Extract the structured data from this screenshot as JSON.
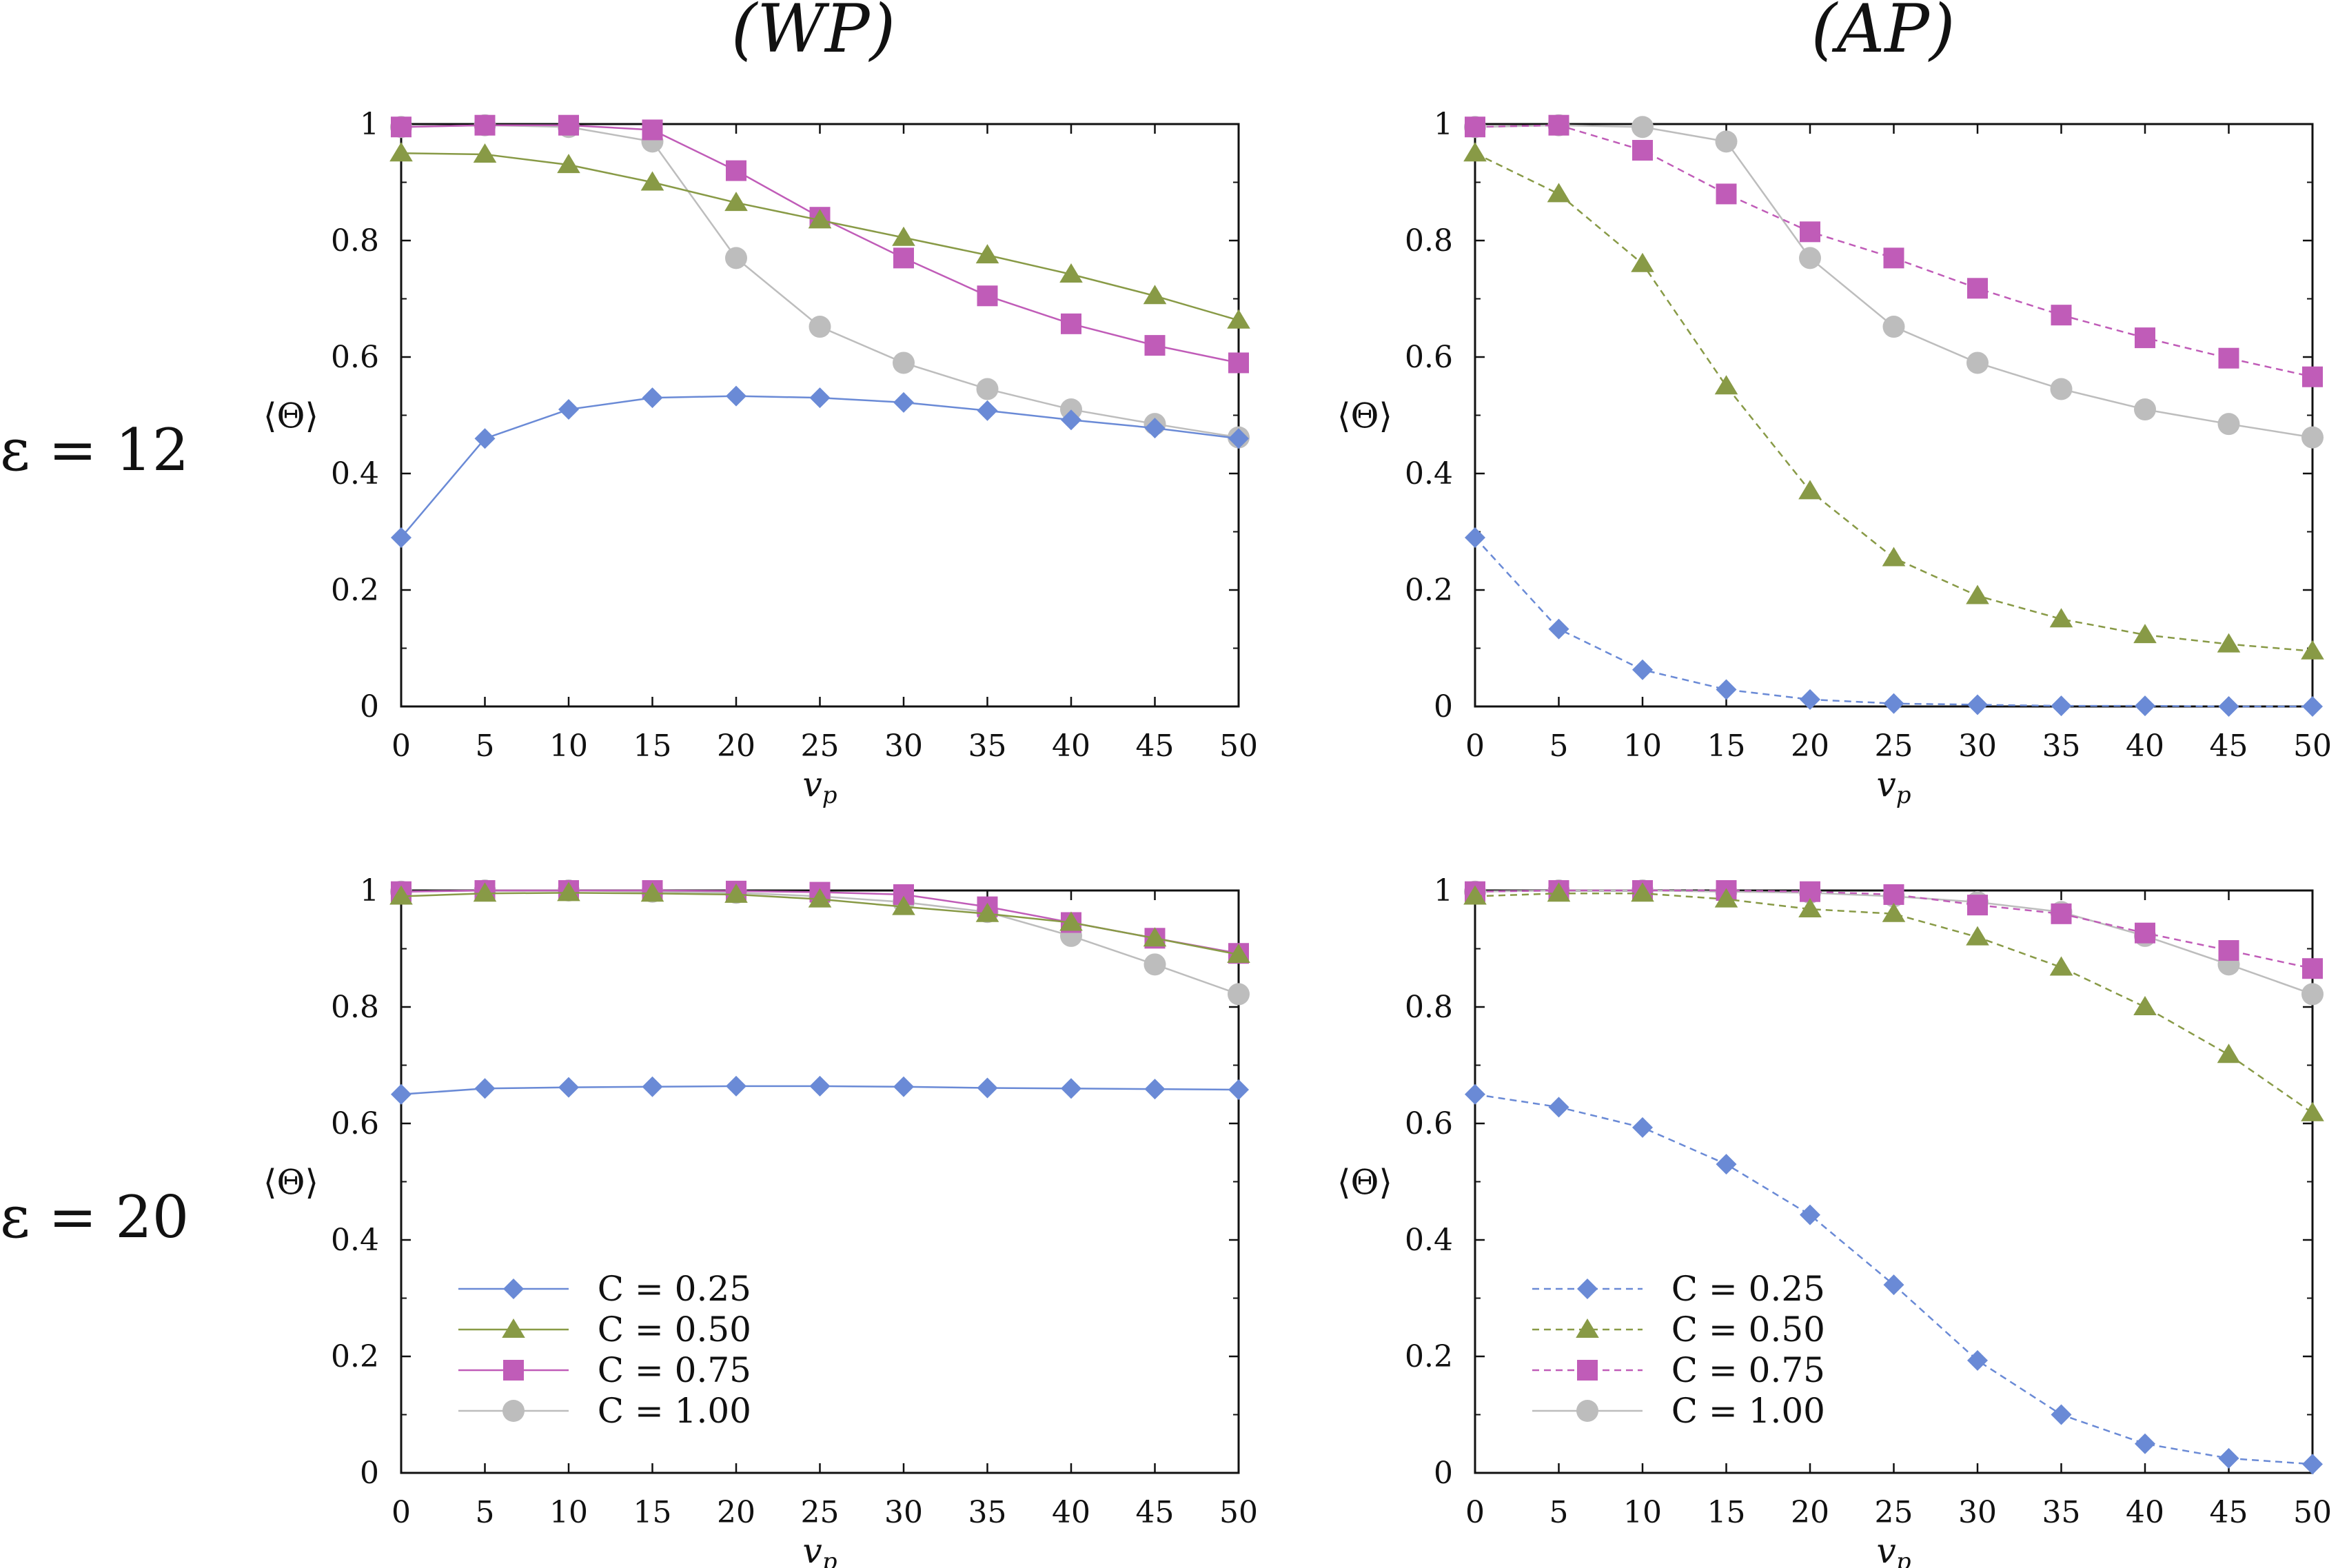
{
  "column_titles": [
    "(WP)",
    "(AP)"
  ],
  "row_titles": [
    "ε = 12",
    "ε = 20"
  ],
  "colors": {
    "C025": "#6a8ad6",
    "C050": "#889a46",
    "C075": "#c05cb8",
    "C100": "#bdbdbd",
    "axis": "#111111"
  },
  "legend": [
    "C = 0.25",
    "C = 0.50",
    "C = 0.75",
    "C = 1.00"
  ],
  "chart_data": [
    {
      "id": "wp-eps12",
      "type": "line",
      "panel": "WP, ε = 12",
      "xlabel": "v_p",
      "ylabel": "⟨Θ⟩",
      "xlim": [
        0,
        50
      ],
      "ylim": [
        0,
        1
      ],
      "x": [
        0,
        5,
        10,
        15,
        20,
        25,
        30,
        35,
        40,
        45,
        50
      ],
      "xticks": [
        "0",
        "5",
        "10",
        "15",
        "20",
        "25",
        "30",
        "35",
        "40",
        "45",
        "50"
      ],
      "yticks": [
        "0",
        "0.2",
        "0.4",
        "0.6",
        "0.8",
        "1"
      ],
      "line_style": [
        "solid",
        "solid",
        "solid",
        "solid"
      ],
      "series": [
        {
          "name": "C = 0.25",
          "values": [
            0.29,
            0.46,
            0.51,
            0.53,
            0.533,
            0.53,
            0.522,
            0.508,
            0.492,
            0.478,
            0.46
          ]
        },
        {
          "name": "C = 0.50",
          "values": [
            0.95,
            0.948,
            0.93,
            0.9,
            0.865,
            0.835,
            0.805,
            0.775,
            0.742,
            0.705,
            0.663
          ]
        },
        {
          "name": "C = 0.75",
          "values": [
            0.995,
            0.998,
            0.998,
            0.99,
            0.92,
            0.84,
            0.77,
            0.705,
            0.657,
            0.62,
            0.59
          ]
        },
        {
          "name": "C = 1.00",
          "values": [
            0.995,
            0.998,
            0.995,
            0.97,
            0.77,
            0.652,
            0.59,
            0.545,
            0.51,
            0.485,
            0.462
          ]
        }
      ]
    },
    {
      "id": "ap-eps12",
      "type": "line",
      "panel": "AP, ε = 12",
      "xlabel": "v_p",
      "ylabel": "⟨Θ⟩",
      "xlim": [
        0,
        50
      ],
      "ylim": [
        0,
        1
      ],
      "x": [
        0,
        5,
        10,
        15,
        20,
        25,
        30,
        35,
        40,
        45,
        50
      ],
      "xticks": [
        "0",
        "5",
        "10",
        "15",
        "20",
        "25",
        "30",
        "35",
        "40",
        "45",
        "50"
      ],
      "yticks": [
        "0",
        "0.2",
        "0.4",
        "0.6",
        "0.8",
        "1"
      ],
      "line_style": [
        "dashed",
        "dashed",
        "dashed",
        "solid"
      ],
      "series": [
        {
          "name": "C = 0.25",
          "values": [
            0.29,
            0.133,
            0.063,
            0.029,
            0.012,
            0.005,
            0.003,
            0.001,
            0.001,
            0.0,
            0.0
          ]
        },
        {
          "name": "C = 0.50",
          "values": [
            0.95,
            0.88,
            0.76,
            0.55,
            0.37,
            0.255,
            0.19,
            0.15,
            0.123,
            0.107,
            0.095
          ]
        },
        {
          "name": "C = 0.75",
          "values": [
            0.995,
            0.998,
            0.955,
            0.88,
            0.815,
            0.77,
            0.718,
            0.672,
            0.633,
            0.598,
            0.566
          ]
        },
        {
          "name": "C = 1.00",
          "values": [
            0.995,
            0.998,
            0.995,
            0.97,
            0.77,
            0.652,
            0.59,
            0.545,
            0.51,
            0.485,
            0.462
          ]
        }
      ]
    },
    {
      "id": "wp-eps20",
      "type": "line",
      "panel": "WP, ε = 20",
      "xlabel": "v_p",
      "ylabel": "⟨Θ⟩",
      "xlim": [
        0,
        50
      ],
      "ylim": [
        0,
        1
      ],
      "x": [
        0,
        5,
        10,
        15,
        20,
        25,
        30,
        35,
        40,
        45,
        50
      ],
      "xticks": [
        "0",
        "5",
        "10",
        "15",
        "20",
        "25",
        "30",
        "35",
        "40",
        "45",
        "50"
      ],
      "yticks": [
        "0",
        "0.2",
        "0.4",
        "0.6",
        "0.8",
        "1"
      ],
      "line_style": [
        "solid",
        "solid",
        "solid",
        "solid"
      ],
      "series": [
        {
          "name": "C = 0.25",
          "values": [
            0.65,
            0.66,
            0.662,
            0.663,
            0.664,
            0.664,
            0.663,
            0.661,
            0.66,
            0.659,
            0.658
          ]
        },
        {
          "name": "C = 0.50",
          "values": [
            0.99,
            0.995,
            0.996,
            0.995,
            0.993,
            0.985,
            0.972,
            0.96,
            0.945,
            0.918,
            0.89
          ]
        },
        {
          "name": "C = 0.75",
          "values": [
            0.998,
            1.0,
            1.0,
            1.0,
            0.999,
            0.997,
            0.993,
            0.972,
            0.945,
            0.918,
            0.892
          ]
        },
        {
          "name": "C = 1.00",
          "values": [
            0.998,
            1.0,
            1.0,
            0.998,
            0.996,
            0.99,
            0.98,
            0.963,
            0.922,
            0.873,
            0.822
          ]
        }
      ]
    },
    {
      "id": "ap-eps20",
      "type": "line",
      "panel": "AP, ε = 20",
      "xlabel": "v_p",
      "ylabel": "⟨Θ⟩",
      "xlim": [
        0,
        50
      ],
      "ylim": [
        0,
        1
      ],
      "x": [
        0,
        5,
        10,
        15,
        20,
        25,
        30,
        35,
        40,
        45,
        50
      ],
      "xticks": [
        "0",
        "5",
        "10",
        "15",
        "20",
        "25",
        "30",
        "35",
        "40",
        "45",
        "50"
      ],
      "yticks": [
        "0",
        "0.2",
        "0.4",
        "0.6",
        "0.8",
        "1"
      ],
      "line_style": [
        "dashed",
        "dashed",
        "dashed",
        "solid"
      ],
      "series": [
        {
          "name": "C = 0.25",
          "values": [
            0.65,
            0.628,
            0.593,
            0.53,
            0.443,
            0.323,
            0.193,
            0.1,
            0.05,
            0.025,
            0.015
          ]
        },
        {
          "name": "C = 0.50",
          "values": [
            0.99,
            0.995,
            0.995,
            0.985,
            0.968,
            0.96,
            0.92,
            0.868,
            0.8,
            0.718,
            0.618
          ]
        },
        {
          "name": "C = 0.75",
          "values": [
            0.998,
            1.0,
            1.0,
            1.0,
            0.998,
            0.993,
            0.975,
            0.96,
            0.927,
            0.897,
            0.866
          ]
        },
        {
          "name": "C = 1.00",
          "values": [
            0.998,
            1.0,
            1.0,
            0.998,
            0.996,
            0.99,
            0.98,
            0.963,
            0.922,
            0.873,
            0.822
          ]
        }
      ]
    }
  ]
}
